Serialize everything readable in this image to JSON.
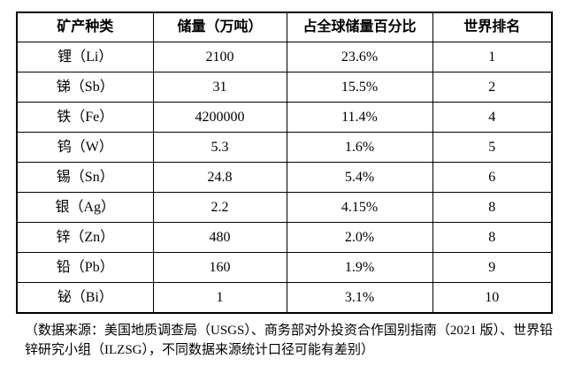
{
  "page": {
    "background_color": "#ffffff",
    "text_color": "#000000",
    "border_color": "#000000"
  },
  "table": {
    "headers": [
      "矿产种类",
      "储量（万吨）",
      "占全球储量百分比",
      "世界排名"
    ],
    "rows": [
      {
        "mineral": "锂（Li）",
        "reserves": "2100",
        "global_share": "23.6%",
        "world_rank": "1"
      },
      {
        "mineral": "锑（Sb）",
        "reserves": "31",
        "global_share": "15.5%",
        "world_rank": "2"
      },
      {
        "mineral": "铁（Fe）",
        "reserves": "4200000",
        "global_share": "11.4%",
        "world_rank": "4"
      },
      {
        "mineral": "钨（W）",
        "reserves": "5.3",
        "global_share": "1.6%",
        "world_rank": "5"
      },
      {
        "mineral": "锡（Sn）",
        "reserves": "24.8",
        "global_share": "5.4%",
        "world_rank": "6"
      },
      {
        "mineral": "银（Ag）",
        "reserves": "2.2",
        "global_share": "4.15%",
        "world_rank": "8"
      },
      {
        "mineral": "锌（Zn）",
        "reserves": "480",
        "global_share": "2.0%",
        "world_rank": "8"
      },
      {
        "mineral": "铅（Pb）",
        "reserves": "160",
        "global_share": "1.9%",
        "world_rank": "9"
      },
      {
        "mineral": "铋（Bi）",
        "reserves": "1",
        "global_share": "3.1%",
        "world_rank": "10"
      }
    ]
  },
  "footnote": {
    "lines": [
      "（数据来源：美国地质调查局（USGS）、商务部对外投资合作国别指南（2021 版）、世界铅",
      "锌研究小组（ILZSG），不同数据来源统计口径可能有差别）"
    ]
  }
}
